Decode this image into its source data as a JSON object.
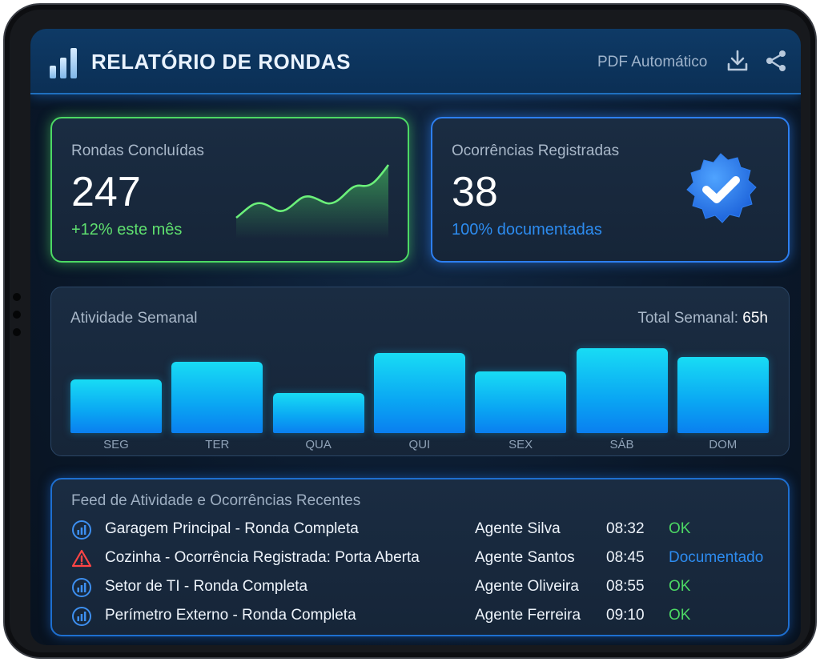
{
  "header": {
    "title": "RELATÓRIO DE RONDAS",
    "pdf_label": "PDF Automático",
    "icons": [
      "bar-chart-icon",
      "download-icon",
      "share-icon"
    ]
  },
  "kpis": {
    "rondas": {
      "label": "Rondas Concluídas",
      "value": "247",
      "sub": "+12% este mês",
      "accent": "#4cd964"
    },
    "ocorrencias": {
      "label": "Ocorrências Registradas",
      "value": "38",
      "sub": "100% documentadas",
      "accent": "#2d7ff0"
    }
  },
  "activity": {
    "title": "Atividade Semanal",
    "total_label": "Total Semanal:",
    "total_value": "65h"
  },
  "chart_data": {
    "type": "bar",
    "categories": [
      "SEG",
      "TER",
      "QUA",
      "QUI",
      "SEX",
      "SÁB",
      "DOM"
    ],
    "values": [
      66,
      87,
      49,
      98,
      76,
      104,
      93
    ]
  },
  "feed": {
    "title": "Feed de Atividade e Ocorrências Recentes",
    "rows": [
      {
        "icon": "chart-circle-icon",
        "desc": "Garagem Principal - Ronda Completa",
        "agent": "Agente Silva",
        "time": "08:32",
        "status": "OK",
        "status_color": "#4cd964"
      },
      {
        "icon": "warning-icon",
        "desc": "Cozinha - Ocorrência Registrada: Porta Aberta",
        "agent": "Agente Santos",
        "time": "08:45",
        "status": "Documentado",
        "status_color": "#2d8cf0"
      },
      {
        "icon": "chart-circle-icon",
        "desc": "Setor de TI - Ronda Completa",
        "agent": "Agente Oliveira",
        "time": "08:55",
        "status": "OK",
        "status_color": "#4cd964"
      },
      {
        "icon": "chart-circle-icon",
        "desc": "Perímetro Externo - Ronda Completa",
        "agent": "Agente Ferreira",
        "time": "09:10",
        "status": "OK",
        "status_color": "#4cd964"
      }
    ]
  }
}
